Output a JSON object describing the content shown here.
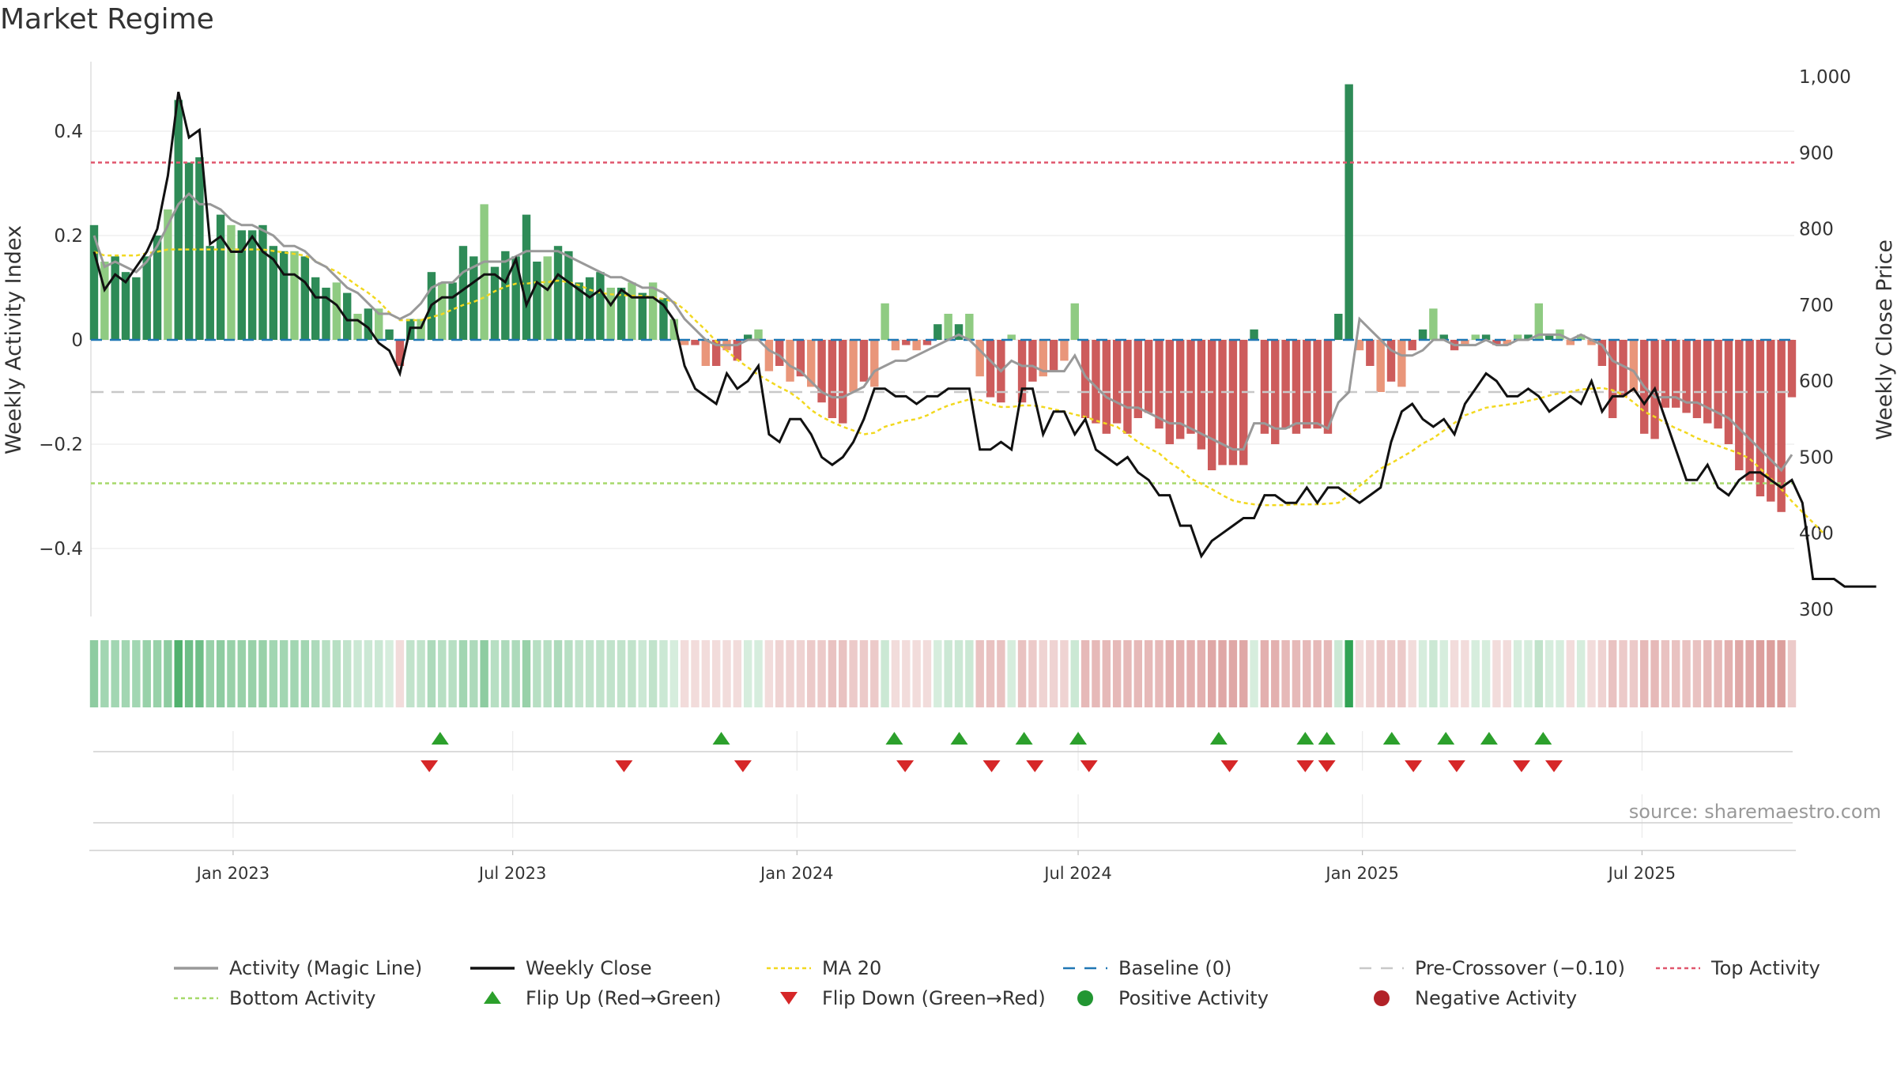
{
  "title": "Market Regime",
  "source": "source: sharemaestro.com",
  "chart_data": {
    "type": "bar",
    "left_axis": {
      "label": "Weekly Activity Index",
      "ticks": [
        0.4,
        0.2,
        0,
        -0.2,
        -0.4
      ],
      "tick_labels": [
        "0.4",
        "0.2",
        "0",
        "−0.2",
        "−0.4"
      ],
      "range": [
        -0.52,
        0.53
      ]
    },
    "right_axis": {
      "label": "Weekly Close Price",
      "ticks": [
        1000,
        900,
        800,
        700,
        600,
        500,
        400,
        300
      ],
      "tick_labels": [
        "1,000",
        "900",
        "800",
        "700",
        "600",
        "500",
        "400",
        "300"
      ],
      "range": [
        300,
        1000
      ]
    },
    "x_axis": {
      "start": "2022-10-03",
      "end": "2025-10-06",
      "ticks": [
        {
          "date": "2023-01-01",
          "label": "Jan 2023"
        },
        {
          "date": "2023-07-01",
          "label": "Jul 2023"
        },
        {
          "date": "2024-01-01",
          "label": "Jan 2024"
        },
        {
          "date": "2024-07-01",
          "label": "Jul 2024"
        },
        {
          "date": "2025-01-01",
          "label": "Jan 2025"
        },
        {
          "date": "2025-07-01",
          "label": "Jul 2025"
        }
      ]
    },
    "reference_lines": {
      "top_activity": 0.34,
      "bottom_activity": -0.275,
      "pre_crossover": -0.1,
      "baseline": 0
    },
    "activity_bars": [
      0.22,
      0.15,
      0.16,
      0.13,
      0.12,
      0.16,
      0.2,
      0.25,
      0.46,
      0.34,
      0.35,
      0.18,
      0.24,
      0.22,
      0.21,
      0.21,
      0.22,
      0.18,
      0.17,
      0.17,
      0.16,
      0.12,
      0.1,
      0.11,
      0.09,
      0.05,
      0.06,
      0.06,
      0.02,
      -0.05,
      0.04,
      0.04,
      0.13,
      0.11,
      0.11,
      0.18,
      0.16,
      0.26,
      0.14,
      0.17,
      0.16,
      0.24,
      0.15,
      0.16,
      0.18,
      0.17,
      0.11,
      0.12,
      0.13,
      0.1,
      0.1,
      0.11,
      0.09,
      0.11,
      0.08,
      0.04,
      -0.01,
      -0.01,
      -0.05,
      -0.05,
      -0.02,
      -0.04,
      0.01,
      0.02,
      -0.06,
      -0.05,
      -0.08,
      -0.07,
      -0.09,
      -0.12,
      -0.15,
      -0.16,
      -0.1,
      -0.08,
      -0.09,
      0.07,
      -0.02,
      -0.01,
      -0.02,
      -0.01,
      0.03,
      0.05,
      0.03,
      0.05,
      -0.07,
      -0.11,
      -0.12,
      0.01,
      -0.12,
      -0.08,
      -0.07,
      -0.06,
      -0.04,
      0.07,
      -0.15,
      -0.16,
      -0.18,
      -0.16,
      -0.18,
      -0.15,
      -0.14,
      -0.17,
      -0.2,
      -0.19,
      -0.18,
      -0.21,
      -0.25,
      -0.24,
      -0.24,
      -0.24,
      0.02,
      -0.18,
      -0.2,
      -0.17,
      -0.18,
      -0.17,
      -0.17,
      -0.18,
      0.05,
      0.49,
      -0.02,
      -0.05,
      -0.1,
      -0.08,
      -0.09,
      -0.02,
      0.02,
      0.06,
      0.01,
      -0.02,
      -0.01,
      0.01,
      0.01,
      -0.01,
      -0.01,
      0.01,
      0.01,
      0.07,
      0.01,
      0.02,
      -0.01,
      0.01,
      -0.01,
      -0.05,
      -0.15,
      -0.11,
      -0.1,
      -0.18,
      -0.19,
      -0.13,
      -0.13,
      -0.14,
      -0.15,
      -0.16,
      -0.17,
      -0.2,
      -0.25,
      -0.27,
      -0.3,
      -0.31,
      -0.33,
      -0.11
    ],
    "activity_line": [
      0.2,
      0.14,
      0.15,
      0.14,
      0.13,
      0.15,
      0.18,
      0.22,
      0.26,
      0.28,
      0.26,
      0.26,
      0.25,
      0.23,
      0.22,
      0.22,
      0.21,
      0.2,
      0.18,
      0.18,
      0.17,
      0.15,
      0.14,
      0.12,
      0.1,
      0.09,
      0.07,
      0.05,
      0.05,
      0.04,
      0.05,
      0.07,
      0.1,
      0.11,
      0.11,
      0.13,
      0.14,
      0.15,
      0.15,
      0.15,
      0.16,
      0.17,
      0.17,
      0.17,
      0.17,
      0.16,
      0.15,
      0.14,
      0.13,
      0.12,
      0.12,
      0.11,
      0.1,
      0.1,
      0.09,
      0.07,
      0.04,
      0.02,
      0.0,
      -0.01,
      -0.01,
      -0.01,
      0.0,
      0.0,
      -0.02,
      -0.03,
      -0.05,
      -0.06,
      -0.08,
      -0.1,
      -0.11,
      -0.11,
      -0.1,
      -0.09,
      -0.06,
      -0.05,
      -0.04,
      -0.04,
      -0.03,
      -0.02,
      -0.01,
      0.0,
      0.01,
      0.0,
      -0.02,
      -0.04,
      -0.06,
      -0.04,
      -0.05,
      -0.05,
      -0.06,
      -0.06,
      -0.06,
      -0.03,
      -0.07,
      -0.09,
      -0.11,
      -0.12,
      -0.13,
      -0.13,
      -0.14,
      -0.15,
      -0.16,
      -0.16,
      -0.17,
      -0.18,
      -0.19,
      -0.2,
      -0.21,
      -0.21,
      -0.16,
      -0.16,
      -0.17,
      -0.17,
      -0.16,
      -0.16,
      -0.16,
      -0.17,
      -0.12,
      -0.1,
      0.04,
      0.02,
      0.0,
      -0.02,
      -0.03,
      -0.03,
      -0.02,
      0.0,
      0.0,
      -0.01,
      -0.01,
      -0.01,
      0.0,
      -0.01,
      -0.01,
      0.0,
      0.0,
      0.01,
      0.01,
      0.01,
      0.0,
      0.01,
      0.0,
      -0.01,
      -0.04,
      -0.05,
      -0.06,
      -0.09,
      -0.11,
      -0.11,
      -0.11,
      -0.12,
      -0.12,
      -0.13,
      -0.14,
      -0.15,
      -0.17,
      -0.19,
      -0.21,
      -0.23,
      -0.25,
      -0.22
    ],
    "weekly_close": [
      770,
      720,
      740,
      730,
      750,
      770,
      800,
      870,
      980,
      920,
      930,
      780,
      790,
      770,
      770,
      790,
      770,
      760,
      740,
      740,
      730,
      710,
      710,
      700,
      680,
      680,
      670,
      650,
      640,
      610,
      670,
      670,
      700,
      710,
      710,
      720,
      730,
      740,
      740,
      730,
      760,
      700,
      730,
      720,
      740,
      730,
      720,
      710,
      720,
      700,
      720,
      710,
      710,
      710,
      700,
      680,
      620,
      590,
      580,
      570,
      610,
      590,
      600,
      620,
      530,
      520,
      550,
      550,
      530,
      500,
      490,
      500,
      520,
      550,
      590,
      590,
      580,
      580,
      570,
      580,
      580,
      590,
      590,
      590,
      510,
      510,
      520,
      510,
      590,
      590,
      530,
      560,
      560,
      530,
      550,
      510,
      500,
      490,
      500,
      480,
      470,
      450,
      450,
      410,
      410,
      370,
      390,
      400,
      410,
      420,
      420,
      450,
      450,
      440,
      440,
      460,
      440,
      460,
      460,
      450,
      440,
      450,
      460,
      520,
      560,
      570,
      550,
      540,
      550,
      530,
      570,
      590,
      610,
      600,
      580,
      580,
      590,
      580,
      560,
      570,
      580,
      570,
      600,
      560,
      580,
      580,
      590,
      570,
      590,
      550,
      510,
      470,
      470,
      490,
      460,
      450,
      470,
      480,
      480,
      470,
      460,
      470,
      440,
      340,
      340,
      340,
      330,
      330,
      330,
      330
    ],
    "ma20": [
      770,
      765,
      765,
      765,
      765,
      768,
      770,
      773,
      773,
      773,
      773,
      773,
      773,
      773,
      773,
      773,
      773,
      771,
      769,
      767,
      765,
      758,
      750,
      744,
      735,
      725,
      716,
      705,
      690,
      680,
      680,
      680,
      684,
      688,
      694,
      700,
      704,
      710,
      718,
      724,
      728,
      728,
      730,
      730,
      732,
      730,
      726,
      720,
      716,
      714,
      713,
      712,
      712,
      710,
      708,
      704,
      694,
      680,
      667,
      652,
      640,
      628,
      618,
      608,
      600,
      592,
      585,
      575,
      562,
      553,
      546,
      540,
      535,
      530,
      532,
      540,
      544,
      548,
      550,
      555,
      562,
      568,
      572,
      576,
      575,
      570,
      566,
      566,
      568,
      568,
      566,
      563,
      560,
      556,
      553,
      548,
      544,
      540,
      530,
      520,
      512,
      505,
      493,
      484,
      472,
      465,
      458,
      450,
      443,
      440,
      438,
      437,
      437,
      437,
      438,
      438,
      438,
      439,
      440,
      450,
      462,
      474,
      485,
      492,
      500,
      508,
      518,
      525,
      535,
      545,
      555,
      560,
      565,
      567,
      569,
      571,
      574,
      577,
      581,
      584,
      586,
      589,
      590,
      591,
      588,
      582,
      572,
      560,
      553,
      545,
      538,
      532,
      525,
      520,
      515,
      510,
      505,
      498,
      485,
      472,
      458,
      442,
      428,
      414,
      400
    ],
    "regime_strip_intensity": [
      0.55,
      0.45,
      0.45,
      0.45,
      0.45,
      0.5,
      0.5,
      0.55,
      0.85,
      0.7,
      0.7,
      0.5,
      0.55,
      0.5,
      0.5,
      0.5,
      0.5,
      0.45,
      0.45,
      0.45,
      0.45,
      0.4,
      0.35,
      0.35,
      0.3,
      0.25,
      0.25,
      0.25,
      0.2,
      0.2,
      0.3,
      0.3,
      0.4,
      0.35,
      0.35,
      0.45,
      0.4,
      0.55,
      0.35,
      0.4,
      0.4,
      0.5,
      0.35,
      0.35,
      0.4,
      0.35,
      0.3,
      0.3,
      0.3,
      0.3,
      0.3,
      0.3,
      0.25,
      0.3,
      0.25,
      0.2,
      0.2,
      0.2,
      0.2,
      0.2,
      0.2,
      0.2,
      0.2,
      0.2,
      0.2,
      0.25,
      0.25,
      0.25,
      0.3,
      0.3,
      0.35,
      0.35,
      0.3,
      0.3,
      0.3,
      0.25,
      0.2,
      0.2,
      0.2,
      0.2,
      0.2,
      0.25,
      0.25,
      0.25,
      0.35,
      0.35,
      0.35,
      0.2,
      0.35,
      0.3,
      0.25,
      0.25,
      0.25,
      0.25,
      0.4,
      0.4,
      0.4,
      0.4,
      0.4,
      0.4,
      0.4,
      0.4,
      0.45,
      0.45,
      0.45,
      0.45,
      0.5,
      0.5,
      0.5,
      0.5,
      0.2,
      0.45,
      0.45,
      0.4,
      0.4,
      0.4,
      0.4,
      0.4,
      0.25,
      1.0,
      0.2,
      0.25,
      0.3,
      0.3,
      0.3,
      0.2,
      0.2,
      0.25,
      0.2,
      0.2,
      0.2,
      0.2,
      0.2,
      0.2,
      0.2,
      0.2,
      0.2,
      0.3,
      0.2,
      0.2,
      0.2,
      0.2,
      0.2,
      0.25,
      0.35,
      0.3,
      0.3,
      0.4,
      0.4,
      0.35,
      0.35,
      0.35,
      0.35,
      0.4,
      0.4,
      0.45,
      0.5,
      0.5,
      0.55,
      0.55,
      0.55,
      0.3
    ],
    "flip_up_dates": [
      "2023-05-15",
      "2023-11-13",
      "2024-03-04",
      "2024-04-15",
      "2024-05-27",
      "2024-07-01",
      "2024-09-30",
      "2024-11-25",
      "2024-12-09",
      "2025-01-20",
      "2025-02-24",
      "2025-03-24",
      "2025-04-28"
    ],
    "flip_down_dates": [
      "2023-05-08",
      "2023-09-11",
      "2023-11-27",
      "2024-03-11",
      "2024-05-06",
      "2024-06-03",
      "2024-07-08",
      "2024-10-07",
      "2024-11-25",
      "2024-12-09",
      "2025-02-03",
      "2025-03-03",
      "2025-04-14",
      "2025-05-05"
    ],
    "legend": [
      {
        "label": "Activity (Magic Line)",
        "kind": "line",
        "color": "#999999"
      },
      {
        "label": "Weekly Close",
        "kind": "line",
        "color": "#111111"
      },
      {
        "label": "MA 20",
        "kind": "dotted",
        "color": "#f2d81f"
      },
      {
        "label": "Baseline (0)",
        "kind": "dashed",
        "color": "#1f77b4"
      },
      {
        "label": "Pre-Crossover (−0.10)",
        "kind": "dashed",
        "color": "#c8c8c8"
      },
      {
        "label": "Top Activity",
        "kind": "dotted",
        "color": "#e0566d"
      },
      {
        "label": "Bottom Activity",
        "kind": "dotted",
        "color": "#a6d96a"
      },
      {
        "label": "Flip Up (Red→Green)",
        "kind": "up",
        "color": "#2ca02c"
      },
      {
        "label": "Flip Down (Green→Red)",
        "kind": "down",
        "color": "#d62728"
      },
      {
        "label": "Positive Activity",
        "kind": "dot",
        "color": "#229632"
      },
      {
        "label": "Negative Activity",
        "kind": "dot",
        "color": "#b22228"
      }
    ],
    "colors": {
      "pos_dark": "#2e8b57",
      "pos_light": "#8fcb82",
      "neg_dark": "#cd5c5c",
      "neg_light": "#e9967a",
      "strip_pos": "#31a354",
      "strip_neg": "#c0504d"
    }
  }
}
